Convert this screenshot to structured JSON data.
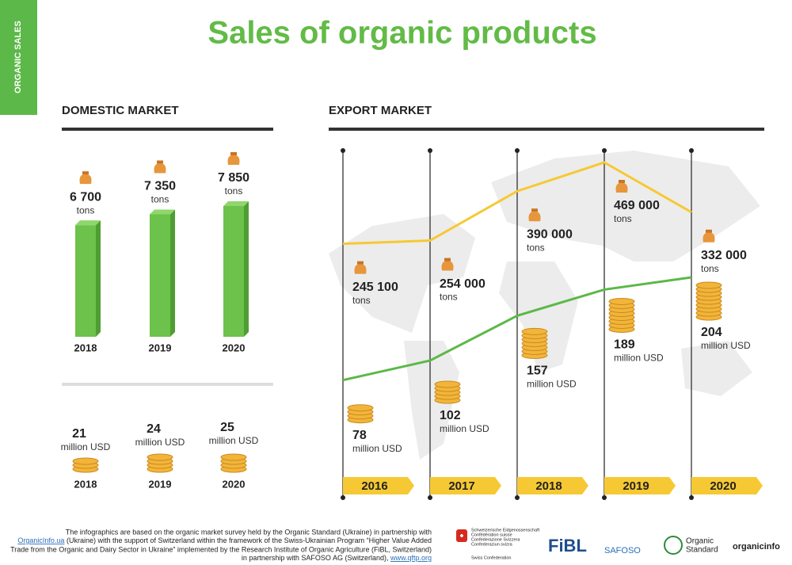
{
  "side_label": "ORGANIC SALES",
  "title": "Sales of organic products",
  "chart_data": [
    {
      "type": "bar",
      "title": "DOMESTIC MARKET",
      "categories": [
        "2018",
        "2019",
        "2020"
      ],
      "values": [
        6700,
        7350,
        7850
      ],
      "value_labels": [
        "6 700",
        "7 350",
        "7 850"
      ],
      "unit": "tons",
      "color": "#6cc24a"
    },
    {
      "type": "coins",
      "categories": [
        "2018",
        "2019",
        "2020"
      ],
      "values": [
        21,
        24,
        25
      ],
      "unit": "million USD",
      "color": "#f2b53a"
    },
    {
      "type": "line",
      "title": "EXPORT MARKET",
      "categories": [
        "2016",
        "2017",
        "2018",
        "2019",
        "2020"
      ],
      "series": [
        {
          "name": "tons",
          "color": "#f6c934",
          "values": [
            245100,
            254000,
            390000,
            469000,
            332000
          ],
          "value_labels": [
            "245 100",
            "254 000",
            "390 000",
            "469 000",
            "332 000"
          ]
        },
        {
          "name": "million USD",
          "color": "#5cb848",
          "values": [
            78,
            102,
            157,
            189,
            204
          ]
        }
      ]
    }
  ],
  "footer": {
    "line1": "The infographics are based on the organic market survey held by the Organic Standard (Ukraine) in partnership with",
    "link1": "OrganicInfo.ua",
    "line2": " (Ukraine) with the support of Switzerland within the framework of the Swiss-Ukrainian Program “Higher Value Added",
    "line3": "Trade from the Organic and Dairy Sector in Ukraine” implemented by the Research Institute of Organic Agriculture (FiBL, Switzerland)",
    "line4": "in partnership with SAFOSO AG (Switzerland), ",
    "link2": "www.qftp.org"
  },
  "logos": {
    "swiss": [
      "Schweizerische Eidgenossenschaft",
      "Confédération suisse",
      "Confederazione Svizzera",
      "Confederaziun svizra"
    ],
    "swiss_en": "Swiss Confederation",
    "fibl": "FiBL",
    "safoso": "SAFOSO",
    "organic_standard": [
      "Organic",
      "Standard"
    ],
    "organicinfo": "organicinfo"
  }
}
